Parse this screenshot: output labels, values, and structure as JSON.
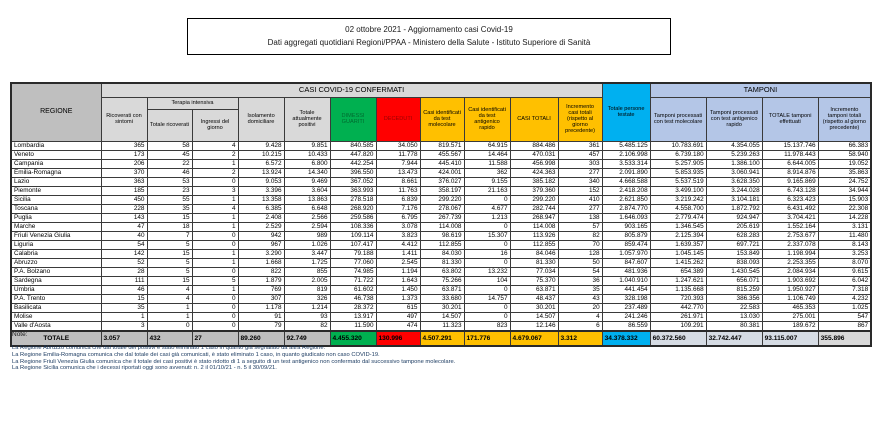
{
  "title": {
    "line1": "02 ottobre 2021 - Aggiornamento casi Covid-19",
    "line2": "Dati aggregati quotidiani Regioni/PPAA - Ministero della Salute - Istituto Superiore di Sanità"
  },
  "table": {
    "group_headers": {
      "confermati": "CASI COVID-19 CONFERMATI",
      "tamponi": "TAMPONI",
      "terapia_intensiva": "Terapia intensiva"
    },
    "col_headers": {
      "regione": "REGIONE",
      "ricoverati": "Ricoverati con sintomi",
      "ti_totale": "Totale ricoverati",
      "ti_ingressi": "Ingressi del giorno",
      "isolamento": "Isolamento domiciliare",
      "attualmente_positivi": "Totale attualmente positivi",
      "dimessi_guariti": "DIMESSI GUARITI",
      "deceduti": "DECEDUTI",
      "casi_molecolare": "Casi identificati da test molecolare",
      "casi_antigenico": "Casi identificati da test antigenico rapido",
      "casi_totali": "CASI TOTALI",
      "incremento_casi": "Incremento casi totali (rispetto al giorno precedente)",
      "persone_testate": "Totale persone testate",
      "tamponi_molecolare": "Tamponi processati con test molecolare",
      "tamponi_antigenico": "Tamponi processati con test antigenico rapido",
      "tamponi_totale": "TOTALE tamponi effettuati",
      "incremento_tamponi": "Incremento tamponi totali (rispetto al giorno precedente)"
    },
    "rows": [
      [
        "Lombardia",
        "365",
        "58",
        "4",
        "9.428",
        "9.851",
        "840.585",
        "34.050",
        "819.571",
        "64.915",
        "884.486",
        "361",
        "5.485.125",
        "10.783.691",
        "4.354.055",
        "15.137.746",
        "66.383"
      ],
      [
        "Veneto",
        "173",
        "45",
        "2",
        "10.215",
        "10.433",
        "447.820",
        "11.778",
        "455.567",
        "14.464",
        "470.031",
        "457",
        "2.106.998",
        "6.739.180",
        "5.239.263",
        "11.978.443",
        "58.940"
      ],
      [
        "Campania",
        "206",
        "22",
        "1",
        "6.572",
        "6.800",
        "442.254",
        "7.944",
        "445.410",
        "11.588",
        "456.998",
        "303",
        "3.533.314",
        "5.257.905",
        "1.386.100",
        "6.644.005",
        "19.052"
      ],
      [
        "Emilia-Romagna",
        "370",
        "46",
        "2",
        "13.924",
        "14.340",
        "396.550",
        "13.473",
        "424.001",
        "362",
        "424.363",
        "277",
        "2.091.890",
        "5.853.935",
        "3.060.941",
        "8.914.876",
        "35.863"
      ],
      [
        "Lazio",
        "363",
        "53",
        "0",
        "9.053",
        "9.469",
        "367.052",
        "8.661",
        "376.027",
        "9.155",
        "385.182",
        "340",
        "4.668.588",
        "5.537.519",
        "3.628.350",
        "9.165.869",
        "24.752"
      ],
      [
        "Piemonte",
        "185",
        "23",
        "3",
        "3.396",
        "3.604",
        "363.993",
        "11.763",
        "358.197",
        "21.163",
        "379.360",
        "152",
        "2.418.208",
        "3.499.100",
        "3.244.028",
        "6.743.128",
        "34.944"
      ],
      [
        "Sicilia",
        "450",
        "55",
        "1",
        "13.358",
        "13.863",
        "278.518",
        "6.839",
        "299.220",
        "0",
        "299.220",
        "410",
        "2.621.850",
        "3.219.242",
        "3.104.181",
        "6.323.423",
        "15.903"
      ],
      [
        "Toscana",
        "228",
        "35",
        "4",
        "6.385",
        "6.648",
        "268.920",
        "7.176",
        "278.067",
        "4.677",
        "282.744",
        "277",
        "2.874.770",
        "4.558.700",
        "1.872.792",
        "6.431.492",
        "22.308"
      ],
      [
        "Puglia",
        "143",
        "15",
        "1",
        "2.408",
        "2.566",
        "259.586",
        "6.795",
        "267.739",
        "1.213",
        "268.947",
        "138",
        "1.646.093",
        "2.779.474",
        "924.947",
        "3.704.421",
        "14.228"
      ],
      [
        "Marche",
        "47",
        "18",
        "1",
        "2.529",
        "2.594",
        "108.336",
        "3.078",
        "114.008",
        "0",
        "114.008",
        "57",
        "903.165",
        "1.346.545",
        "205.619",
        "1.552.164",
        "3.131"
      ],
      [
        "Friuli Venezia Giulia",
        "40",
        "7",
        "0",
        "942",
        "989",
        "109.114",
        "3.823",
        "98.619",
        "15.307",
        "113.926",
        "82",
        "805.879",
        "2.125.394",
        "628.283",
        "2.753.677",
        "11.480"
      ],
      [
        "Liguria",
        "54",
        "5",
        "0",
        "967",
        "1.026",
        "107.417",
        "4.412",
        "112.855",
        "0",
        "112.855",
        "70",
        "859.474",
        "1.639.357",
        "697.721",
        "2.337.078",
        "8.143"
      ],
      [
        "Calabria",
        "142",
        "15",
        "1",
        "3.290",
        "3.447",
        "79.188",
        "1.411",
        "84.030",
        "16",
        "84.046",
        "128",
        "1.057.970",
        "1.045.145",
        "153.849",
        "1.198.994",
        "3.253"
      ],
      [
        "Abruzzo",
        "52",
        "5",
        "1",
        "1.668",
        "1.725",
        "77.060",
        "2.545",
        "81.330",
        "0",
        "81.330",
        "50",
        "847.607",
        "1.415.262",
        "838.093",
        "2.253.355",
        "8.070"
      ],
      [
        "P.A. Bolzano",
        "28",
        "5",
        "0",
        "822",
        "855",
        "74.985",
        "1.194",
        "63.802",
        "13.232",
        "77.034",
        "54",
        "481.936",
        "654.389",
        "1.430.545",
        "2.084.934",
        "9.615"
      ],
      [
        "Sardegna",
        "111",
        "15",
        "5",
        "1.879",
        "2.005",
        "71.722",
        "1.643",
        "75.266",
        "104",
        "75.370",
        "36",
        "1.040.910",
        "1.247.621",
        "656.071",
        "1.903.692",
        "6.042"
      ],
      [
        "Umbria",
        "46",
        "4",
        "1",
        "769",
        "819",
        "61.602",
        "1.450",
        "63.871",
        "0",
        "63.871",
        "35",
        "441.454",
        "1.135.668",
        "815.259",
        "1.950.927",
        "7.318"
      ],
      [
        "P.A. Trento",
        "15",
        "4",
        "0",
        "307",
        "326",
        "46.738",
        "1.373",
        "33.680",
        "14.757",
        "48.437",
        "43",
        "328.198",
        "720.393",
        "386.356",
        "1.106.749",
        "4.232"
      ],
      [
        "Basilicata",
        "35",
        "1",
        "0",
        "1.178",
        "1.214",
        "28.372",
        "615",
        "30.201",
        "0",
        "30.201",
        "20",
        "237.489",
        "442.770",
        "22.583",
        "465.353",
        "1.025"
      ],
      [
        "Molise",
        "1",
        "1",
        "0",
        "91",
        "93",
        "13.917",
        "497",
        "14.507",
        "0",
        "14.507",
        "4",
        "241.246",
        "261.971",
        "13.030",
        "275.001",
        "547"
      ],
      [
        "Valle d'Aosta",
        "3",
        "0",
        "0",
        "79",
        "82",
        "11.590",
        "474",
        "11.323",
        "823",
        "12.146",
        "6",
        "86.559",
        "109.291",
        "80.381",
        "189.672",
        "867"
      ]
    ],
    "total": [
      "TOTALE",
      "3.057",
      "432",
      "27",
      "89.260",
      "92.749",
      "4.455.320",
      "130.996",
      "4.507.291",
      "171.776",
      "4.679.067",
      "3.312",
      "34.378.332",
      "60.372.560",
      "32.742.447",
      "93.115.007",
      "355.896"
    ]
  },
  "notes": {
    "label": "Note:",
    "items": [
      "La Regione Abruzzo comunica che dal totale dei positivi è stato eliminato 1 caso in quanto già segnalato da altra Regione.",
      "La Regione Emilia-Romagna comunica che dal totale dei casi già comunicati, è stato eliminato 1 caso, in quanto giudicato non caso COVID-19.",
      "La Regione Friuli Venezia Giulia comunica che il totale dei casi positivi è stato ridotto di 1 a seguito di un test antigenico non confermato dal successivo tampone molecolare.",
      "La Regione Sicilia comunica che i decessi riportati oggi sono avvenuti: n. 2 il 01/10/21 - n. 5 il 30/09/21."
    ]
  },
  "colors": {
    "guariti_green": "#00B050",
    "deceduti_red": "#FF0000",
    "casi_amber": "#FFC000",
    "testate_cyan": "#00B0F0",
    "tamponi_blue": "#B4C6E7",
    "header_gray": "#D9D9D9",
    "regione_gray": "#BFBFBF"
  }
}
